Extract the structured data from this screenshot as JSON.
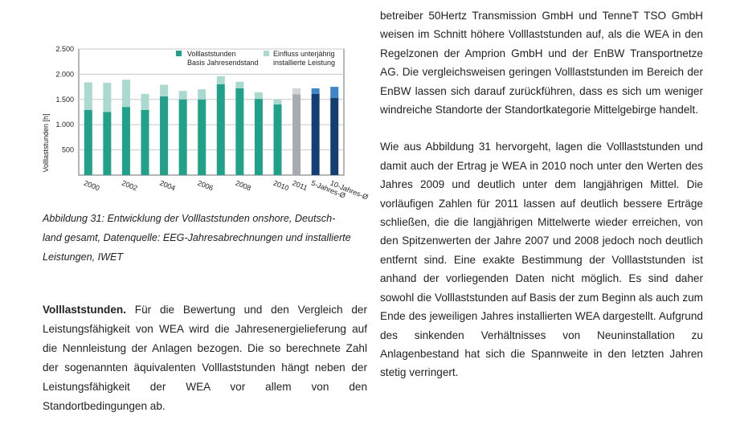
{
  "chart_data": {
    "type": "bar",
    "categories": [
      "2000",
      "2001",
      "2002",
      "2003",
      "2004",
      "2005",
      "2006",
      "2007",
      "2008",
      "2009",
      "2010",
      "2011",
      "5-Jahres-Ø",
      "10-Jahres-Ø"
    ],
    "x_tick_labels": [
      "2000",
      "2002",
      "2004",
      "2006",
      "2008",
      "2010",
      "2011",
      "5-Jahres-Ø",
      "10-Jahres-Ø"
    ],
    "ylabel": "Volllaststunden [h]",
    "ylim": [
      0,
      2500
    ],
    "y_ticks": [
      "500",
      "1.000",
      "1.500",
      "2.000",
      "2.500"
    ],
    "y_tick_values": [
      500,
      1000,
      1500,
      2000,
      2500
    ],
    "grid": true,
    "legend_position": "top",
    "series": [
      {
        "name": "Volllaststunden Basis Jahresendstand",
        "values": [
          1290,
          1250,
          1350,
          1290,
          1560,
          1500,
          1500,
          1800,
          1720,
          1510,
          1400,
          1600,
          1610,
          1530
        ]
      },
      {
        "name": "Einfluss unterjährig installierte Leistung",
        "values": [
          550,
          580,
          540,
          320,
          230,
          170,
          200,
          160,
          130,
          130,
          100,
          120,
          110,
          220
        ]
      }
    ],
    "legend": {
      "item1_line1": "Volllaststunden",
      "item1_line2": "Basis Jahresendstand",
      "item2_line1": "Einfluss unterjährig",
      "item2_line2": "installierte Leistung"
    },
    "colors": {
      "base": "#21a08a",
      "influence": "#a9d9d0",
      "base_2011": "#a6abb0",
      "influence_2011": "#d2d5d8",
      "base_avg": "#153f73",
      "influence_avg": "#3f86c9",
      "grid": "#c8c8c8",
      "frame": "#6d6d6d"
    }
  },
  "caption": {
    "line1": "Abbildung 31: Entwicklung der Volllaststunden onshore, Deutsch-",
    "line2": "land gesamt, Datenquelle: EEG-Jahresabrechnungen und installierte",
    "line3": "Leistungen, IWET"
  },
  "left_paragraph": {
    "lead": "Volllaststunden.",
    "text": "Für die Bewertung und den Vergleich der Leistungsfähigkeit von WEA wird die Jahresenergielieferung auf die Nennleistung der Anlagen bezogen. Die so berechnete Zahl der sogenannten äquivalenten Volllaststunden hängt neben der Leistungsfähigkeit der WEA vor allem von den Standortbedingungen ab."
  },
  "right_column": {
    "para1": "betreiber 50Hertz Transmission GmbH und TenneT TSO GmbH weisen im Schnitt höhere Volllaststunden auf, als die WEA in den Regelzonen der Amprion GmbH und der EnBW Transportnetze AG. Die vergleichsweisen geringen Volllaststunden im Bereich der EnBW lassen sich darauf zurückführen, dass es sich um weniger windreiche Standorte der Standortkategorie Mittelgebirge handelt.",
    "para2": "Wie aus Abbildung 31 hervorgeht, lagen die Volllaststunden und damit auch der Ertrag je WEA in 2010 noch unter den Werten des Jahres 2009 und deutlich unter dem langjährigen Mittel. Die vorläufigen Zahlen für 2011 lassen auf deutlich bessere Erträge schließen, die die langjährigen Mittelwerte wieder erreichen, von den Spitzenwerten der Jahre 2007 und 2008 jedoch noch deutlich entfernt sind. Eine exakte Bestimmung der Volllaststunden ist anhand der vorliegenden Daten nicht möglich. Es sind daher sowohl die Volllaststunden auf Basis der zum Beginn als auch zum Ende des jeweiligen Jahres installierten WEA dargestellt. Aufgrund des sinkenden Verhältnisses von Neuninstallation zu Anlagenbestand hat sich die Spannweite in den letzten Jahren stetig verringert."
  }
}
